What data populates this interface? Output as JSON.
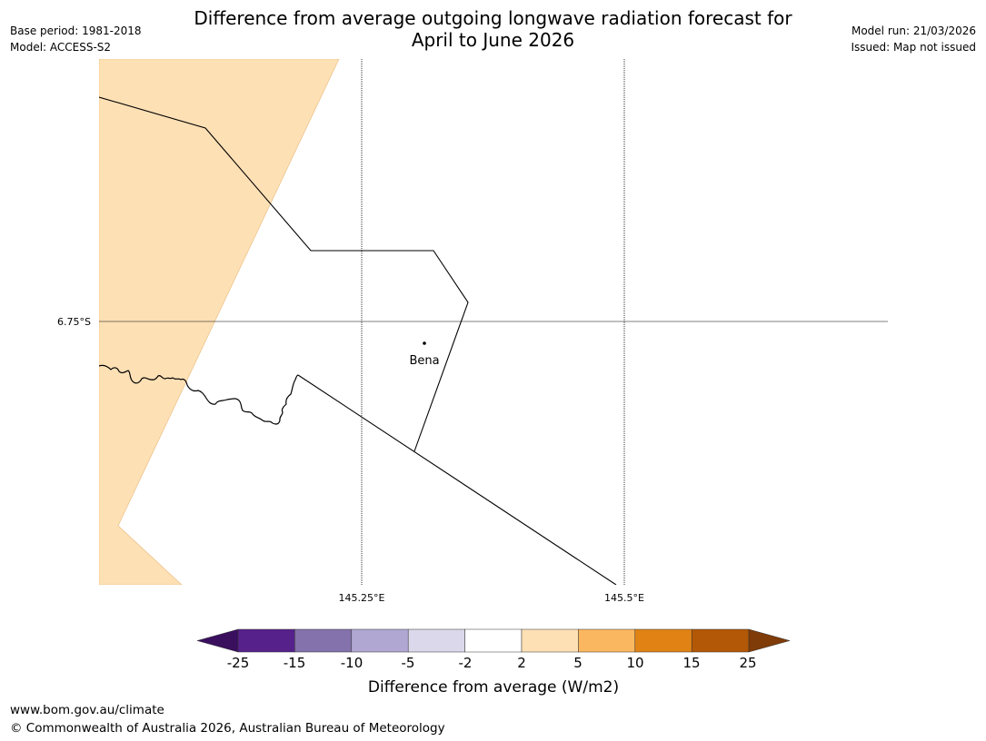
{
  "title": {
    "line1": "Difference from average outgoing longwave radiation forecast for",
    "line2": "April to June 2026"
  },
  "meta": {
    "base_period": "Base period: 1981-2018",
    "model": "Model: ACCESS-S2",
    "model_run": "Model run: 21/03/2026",
    "issued": "Issued: Map not issued"
  },
  "map": {
    "latitude_label": "6.75°S",
    "longitude_labels": [
      "145.25°E",
      "145.5°E"
    ],
    "place_name": "Bena"
  },
  "legend": {
    "title": "Difference from average (W/m2)",
    "tick_labels": [
      "-25",
      "-15",
      "-10",
      "-5",
      "-2",
      "2",
      "5",
      "10",
      "15",
      "25"
    ],
    "colors": [
      "#3a0f5e",
      "#56218b",
      "#8372ac",
      "#b0a8d2",
      "#dad8ea",
      "#ffffff",
      "#fee0b5",
      "#fbb75f",
      "#e08314",
      "#b35806",
      "#7f3b08"
    ],
    "map_fill_color": "#fee0b5"
  },
  "footer": {
    "url": "www.bom.gov.au/climate",
    "copyright": "© Commonwealth of Australia 2026, Australian Bureau of Meteorology"
  }
}
